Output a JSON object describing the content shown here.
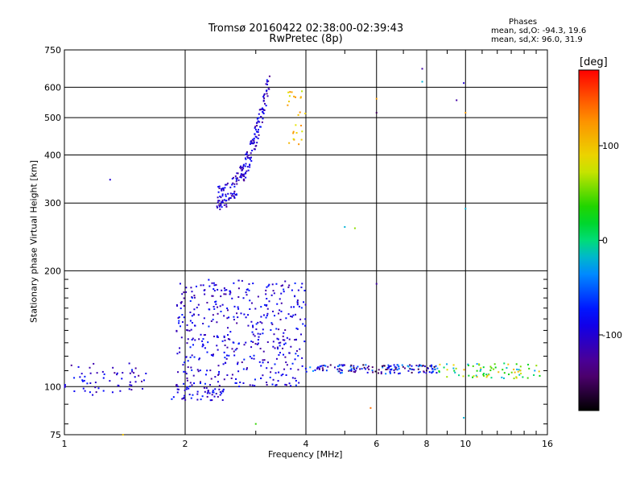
{
  "chart_data": {
    "type": "scatter",
    "title": "Tromsø 20160422 02:38:00-02:39:43",
    "subtitle": "RwPretec (8p)",
    "xlabel": "Frequency [MHz]",
    "ylabel": "Stationary phase Virtual Height [km]",
    "x_scale": "log",
    "y_scale": "log",
    "xlim": [
      1,
      16
    ],
    "ylim": [
      75,
      750
    ],
    "x_ticks": [
      "1",
      "2",
      "4",
      "6",
      "8",
      "10",
      "16"
    ],
    "y_ticks": [
      "75",
      "100",
      "200",
      "300",
      "400",
      "500",
      "600",
      "750"
    ],
    "grid": true,
    "stats": {
      "header": "Phases",
      "line_o": "mean, sd,O: -94.3, 19.6",
      "line_x": "mean, sd,X:  96.0, 31.9"
    },
    "colorbar": {
      "label": "[deg]",
      "range": [
        -180,
        180
      ],
      "ticks": [
        "100",
        "0",
        "-100"
      ],
      "tick_values": [
        100,
        0,
        -100
      ]
    },
    "clusters": [
      {
        "x0": 1.0,
        "x1": 1.6,
        "y0": 95,
        "y1": 115,
        "phase": -100,
        "n": 60
      },
      {
        "x0": 1.85,
        "x1": 2.5,
        "y0": 92,
        "y1": 100,
        "phase": -95,
        "n": 50
      },
      {
        "x0": 1.9,
        "x1": 4.0,
        "y0": 100,
        "y1": 190,
        "phase": -95,
        "n": 450
      },
      {
        "x0": 2.4,
        "x1": 3.25,
        "y0": 310,
        "y1": 640,
        "phase": -100,
        "n": 200
      },
      {
        "x0": 3.6,
        "x1": 4.0,
        "y0": 420,
        "y1": 590,
        "phase": 100,
        "n": 25
      },
      {
        "x0": 4.0,
        "x1": 8.5,
        "y0": 108,
        "y1": 114,
        "phase": -95,
        "n": 150
      },
      {
        "x0": 8.5,
        "x1": 15.5,
        "y0": 105,
        "y1": 115,
        "phase": 40,
        "n": 80
      }
    ],
    "outliers": [
      {
        "x": 1.3,
        "y": 345,
        "phase": -100
      },
      {
        "x": 5.0,
        "y": 260,
        "phase": -20
      },
      {
        "x": 5.3,
        "y": 258,
        "phase": 60
      },
      {
        "x": 6.0,
        "y": 560,
        "phase": 120
      },
      {
        "x": 6.0,
        "y": 515,
        "phase": -150
      },
      {
        "x": 6.0,
        "y": 185,
        "phase": -120
      },
      {
        "x": 7.8,
        "y": 670,
        "phase": -120
      },
      {
        "x": 7.8,
        "y": 620,
        "phase": -20
      },
      {
        "x": 9.5,
        "y": 555,
        "phase": -120
      },
      {
        "x": 9.9,
        "y": 615,
        "phase": -100
      },
      {
        "x": 10.0,
        "y": 515,
        "phase": 120
      },
      {
        "x": 10.0,
        "y": 290,
        "phase": -20
      },
      {
        "x": 9.9,
        "y": 83,
        "phase": -20
      },
      {
        "x": 3.0,
        "y": 80,
        "phase": 40
      },
      {
        "x": 1.4,
        "y": 75,
        "phase": 100
      },
      {
        "x": 5.8,
        "y": 88,
        "phase": 140
      }
    ]
  }
}
